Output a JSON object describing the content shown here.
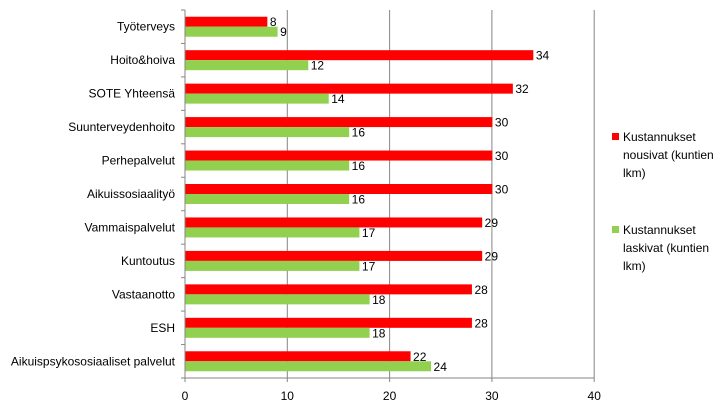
{
  "chart_data": {
    "type": "bar",
    "orientation": "horizontal",
    "categories": [
      "Työterveys",
      "Hoito&hoiva",
      "SOTE Yhteensä",
      "Suunterveydenhoito",
      "Perhepalvelut",
      "Aikuissosiaalityö",
      "Vammaispalvelut",
      "Kuntoutus",
      "Vastaanotto",
      "ESH",
      "Aikuispsykososiaaliset palvelut"
    ],
    "series": [
      {
        "name": "Kustannukset nousivat (kuntien lkm)",
        "legend_lines": [
          "Kustannukset",
          "nousivat (kuntien",
          "lkm)"
        ],
        "color": "#ff0000",
        "values": [
          8,
          34,
          32,
          30,
          30,
          30,
          29,
          29,
          28,
          28,
          22
        ]
      },
      {
        "name": "Kustannukset laskivat (kuntien lkm)",
        "legend_lines": [
          "Kustannukset",
          "laskivat (kuntien",
          "lkm)"
        ],
        "color": "#92d050",
        "values": [
          9,
          12,
          14,
          16,
          16,
          16,
          17,
          17,
          18,
          18,
          24
        ]
      }
    ],
    "xlim": [
      0,
      40
    ],
    "xticks": [
      "0",
      "10",
      "20",
      "30",
      "40"
    ],
    "grid": true,
    "legend_position": "right",
    "data_labels": true
  }
}
